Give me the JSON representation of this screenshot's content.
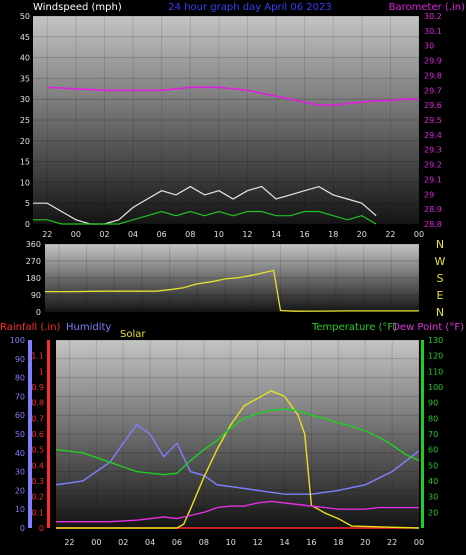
{
  "colors": {
    "background": "#000000",
    "wind_label": "#ffffff",
    "title": "#3b3bff",
    "barometer": "#e020e0",
    "wind_gust": "#e6e6e6",
    "wind_avg": "#20c020",
    "direction": "#e8e030",
    "rainfall": "#ff2a2a",
    "humidity": "#7f7fff",
    "solar": "#e8e020",
    "temperature": "#20d020",
    "dewpoint": "#e030e0",
    "axis_text": "#ffffff",
    "tick_text": "#e0e0e0"
  },
  "panel1": {
    "left_label": "Windspeed (mph)",
    "title": "24 hour graph day   April 06 2023",
    "right_label": "Barometer (.in)"
  },
  "panel2": {
    "compass": [
      "N",
      "W",
      "S",
      "E",
      "N"
    ]
  },
  "panel3": {
    "rain_label": "Rainfall (.in)",
    "humidity_label": "Humidity",
    "solar_label": "Solar",
    "temp_label": "Temperature (°F)",
    "dew_label": "Dew Point (°F)"
  },
  "chart_data": [
    {
      "type": "line",
      "title": "24 hour graph day   April 06 2023",
      "x_ticks": [
        "22",
        "00",
        "02",
        "04",
        "06",
        "08",
        "10",
        "12",
        "14",
        "16",
        "18",
        "20",
        "22",
        "00"
      ],
      "y_left": {
        "label": "Windspeed (mph)",
        "ylim": [
          0,
          50
        ],
        "ticks": [
          0,
          5,
          10,
          15,
          20,
          25,
          30,
          35,
          40,
          45,
          50
        ]
      },
      "y_right": {
        "label": "Barometer (.in)",
        "ylim": [
          28.8,
          30.2
        ],
        "ticks": [
          "28.8",
          "28.9",
          "29",
          "29.1",
          "29.2",
          "29.3",
          "29.4",
          "29.5",
          "29.6",
          "29.7",
          "29.8",
          "29.9",
          "30",
          "30.1",
          "30.2"
        ]
      },
      "series": [
        {
          "name": "Barometer (.in)",
          "axis": "right",
          "x": [
            -2,
            0,
            2,
            4,
            6,
            8,
            10,
            12,
            14,
            15,
            16,
            17,
            18,
            19,
            20,
            21,
            22,
            23,
            24
          ],
          "values": [
            29.72,
            29.71,
            29.7,
            29.7,
            29.7,
            29.72,
            29.72,
            29.7,
            29.66,
            29.64,
            29.62,
            29.6,
            29.6,
            29.61,
            29.62,
            29.63,
            29.63,
            29.64,
            29.64
          ]
        },
        {
          "name": "Wind gust",
          "axis": "left",
          "x": [
            -3,
            -2,
            -1,
            0,
            1,
            2,
            3,
            4,
            5,
            6,
            7,
            8,
            9,
            10,
            11,
            12,
            13,
            14,
            15,
            16,
            17,
            18,
            19,
            20,
            21
          ],
          "values": [
            5,
            5,
            3,
            1,
            0,
            0,
            1,
            4,
            6,
            8,
            7,
            9,
            7,
            8,
            6,
            8,
            9,
            6,
            7,
            8,
            9,
            7,
            6,
            5,
            2
          ]
        },
        {
          "name": "Wind average",
          "axis": "left",
          "x": [
            -3,
            -2,
            -1,
            0,
            1,
            2,
            3,
            4,
            5,
            6,
            7,
            8,
            9,
            10,
            11,
            12,
            13,
            14,
            15,
            16,
            17,
            18,
            19,
            20,
            21
          ],
          "values": [
            1,
            1,
            0,
            0,
            0,
            0,
            0,
            1,
            2,
            3,
            2,
            3,
            2,
            3,
            2,
            3,
            3,
            2,
            2,
            3,
            3,
            2,
            1,
            2,
            0
          ]
        }
      ]
    },
    {
      "type": "line",
      "x_ticks": [
        "22",
        "00",
        "02",
        "04",
        "06",
        "08",
        "10",
        "12",
        "14",
        "16",
        "18",
        "20",
        "22",
        "00"
      ],
      "y_left": {
        "label": "",
        "ylim": [
          0,
          360
        ],
        "ticks": [
          0,
          90,
          180,
          270,
          360
        ]
      },
      "series": [
        {
          "name": "Wind direction",
          "axis": "left",
          "x": [
            -3,
            -1,
            1,
            3,
            5,
            6,
            7,
            8,
            9,
            10,
            11,
            12,
            13,
            13.5,
            14,
            15,
            17,
            19,
            21,
            23,
            24
          ],
          "values": [
            108,
            108,
            110,
            110,
            110,
            118,
            128,
            150,
            160,
            175,
            182,
            195,
            212,
            220,
            8,
            4,
            5,
            6,
            6,
            6,
            6
          ]
        }
      ]
    },
    {
      "type": "line",
      "x_ticks": [
        "22",
        "00",
        "02",
        "04",
        "06",
        "08",
        "10",
        "12",
        "14",
        "16",
        "18",
        "20",
        "22",
        "00"
      ],
      "y_rain": {
        "label": "Rainfall (.in)",
        "ylim": [
          0,
          1.2
        ],
        "ticks": [
          "0",
          "0.1",
          "0.2",
          "0.3",
          "0.4",
          "0.5",
          "0.6",
          "0.7",
          "0.8",
          "0.9",
          "1",
          "1.1"
        ]
      },
      "y_humidity": {
        "label": "Humidity",
        "ylim": [
          0,
          100
        ],
        "ticks": [
          0,
          10,
          20,
          30,
          40,
          50,
          60,
          70,
          80,
          90,
          100
        ]
      },
      "y_temp": {
        "label": "Temperature (°F)",
        "ylim": [
          10,
          130
        ],
        "ticks": [
          20,
          30,
          40,
          50,
          60,
          70,
          80,
          90,
          100,
          110,
          120,
          130
        ]
      },
      "series": [
        {
          "name": "Rainfall (.in)",
          "axis": "rain",
          "x": [
            -3,
            24
          ],
          "values": [
            0,
            0
          ]
        },
        {
          "name": "Humidity",
          "axis": "humidity",
          "x": [
            -3,
            -1,
            1,
            2,
            3,
            4,
            5,
            6,
            7,
            8,
            9,
            10,
            12,
            14,
            16,
            18,
            20,
            22,
            24
          ],
          "values": [
            23,
            25,
            35,
            45,
            55,
            50,
            38,
            45,
            30,
            28,
            23,
            22,
            20,
            18,
            18,
            20,
            23,
            30,
            41
          ]
        },
        {
          "name": "Solar",
          "axis": "humidity",
          "x": [
            -3,
            5,
            6,
            6.5,
            7,
            8,
            9,
            10,
            11,
            12,
            13,
            14,
            15,
            15.5,
            16,
            16.5,
            17,
            18,
            19,
            24
          ],
          "values": [
            0,
            0,
            0,
            2,
            10,
            27,
            42,
            55,
            65,
            69,
            73,
            70,
            60,
            50,
            12,
            10,
            8,
            5,
            1,
            0
          ]
        },
        {
          "name": "Temperature (°F)",
          "axis": "temp",
          "x": [
            -3,
            -1,
            1,
            3,
            5,
            6,
            7,
            8,
            9,
            10,
            11,
            12,
            13,
            14,
            15,
            16,
            17,
            18,
            19,
            20,
            21,
            22,
            23,
            24
          ],
          "values": [
            60,
            58,
            52,
            46,
            44,
            45,
            53,
            60,
            66,
            74,
            80,
            83,
            85,
            86,
            85,
            82,
            80,
            77,
            75,
            72,
            68,
            63,
            57,
            53
          ]
        },
        {
          "name": "Dew Point (°F)",
          "axis": "temp",
          "x": [
            -3,
            -1,
            1,
            3,
            5,
            6,
            7,
            8,
            9,
            10,
            11,
            12,
            13,
            14,
            15,
            16,
            17,
            18,
            19,
            20,
            21,
            22,
            23,
            24
          ],
          "values": [
            14,
            14,
            14,
            15,
            17,
            16,
            18,
            20,
            23,
            24,
            24,
            26,
            27,
            26,
            25,
            24,
            23,
            22,
            22,
            22,
            23,
            23,
            23,
            23
          ]
        }
      ]
    }
  ]
}
